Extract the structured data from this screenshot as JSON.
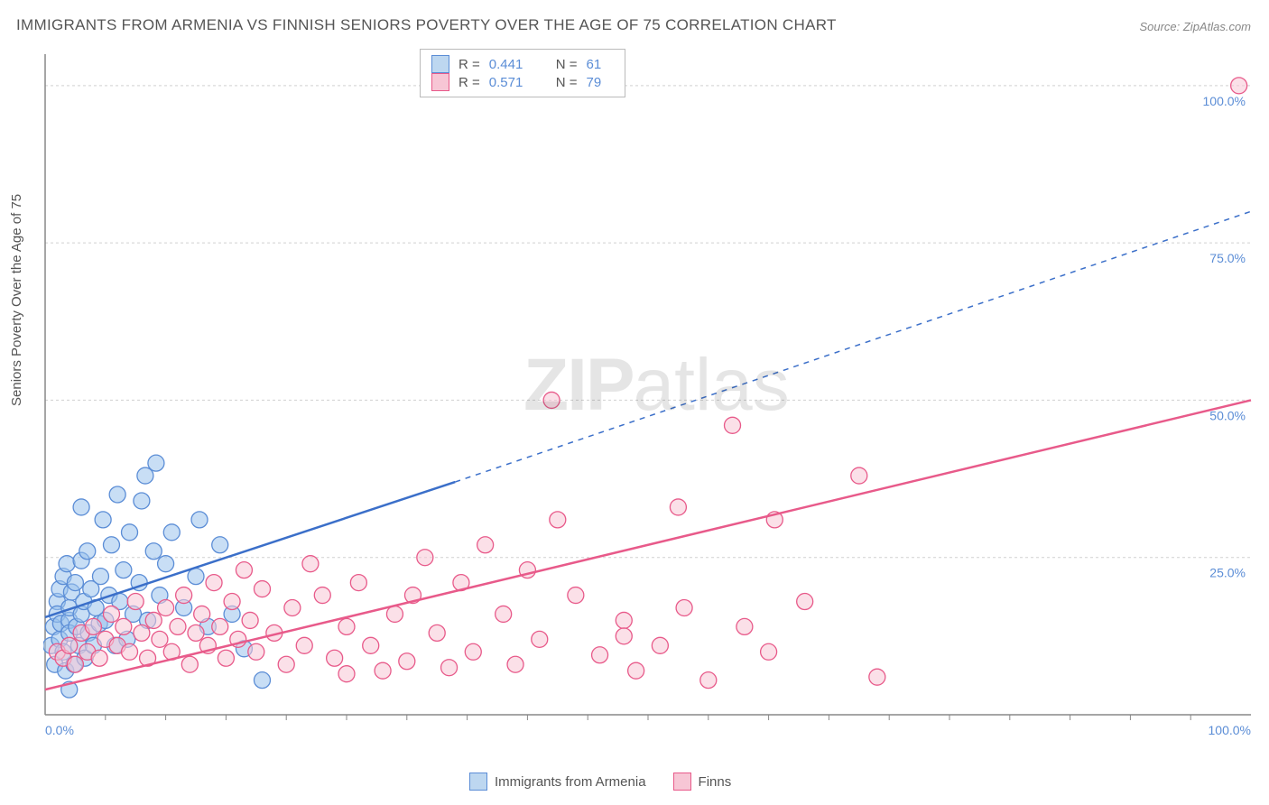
{
  "title": "IMMIGRANTS FROM ARMENIA VS FINNISH SENIORS POVERTY OVER THE AGE OF 75 CORRELATION CHART",
  "source": "Source: ZipAtlas.com",
  "ylabel": "Seniors Poverty Over the Age of 75",
  "watermark": {
    "zip": "ZIP",
    "atlas": "atlas"
  },
  "chart": {
    "type": "scatter",
    "xlim": [
      0,
      100
    ],
    "ylim": [
      0,
      105
    ],
    "background_color": "#ffffff",
    "grid_color": "#d0d0d0",
    "marker_radius": 9,
    "xtick_labels": [
      {
        "v": 0,
        "t": "0.0%"
      },
      {
        "v": 100,
        "t": "100.0%"
      }
    ],
    "ytick_labels": [
      {
        "v": 25,
        "t": "25.0%"
      },
      {
        "v": 50,
        "t": "50.0%"
      },
      {
        "v": 75,
        "t": "75.0%"
      },
      {
        "v": 100,
        "t": "100.0%"
      }
    ],
    "xticks_minor": [
      5,
      10,
      15,
      20,
      25,
      30,
      35,
      40,
      45,
      50,
      55,
      60,
      65,
      70,
      75,
      80,
      85,
      90,
      95
    ],
    "gridlines_y": [
      0,
      25,
      50,
      75,
      100
    ],
    "series": [
      {
        "name": "Immigrants from Armenia",
        "color_fill": "#9bc3ed",
        "color_stroke": "#5b8dd6",
        "R": "0.441",
        "N": "61",
        "trend": {
          "solid": [
            [
              0,
              15.5
            ],
            [
              34,
              37
            ]
          ],
          "dashed": [
            [
              34,
              37
            ],
            [
              100,
              80
            ]
          ],
          "color": "#3b6fc9"
        },
        "points": [
          [
            0.5,
            11
          ],
          [
            0.7,
            14
          ],
          [
            0.8,
            8
          ],
          [
            1,
            18
          ],
          [
            1,
            16
          ],
          [
            1.2,
            20
          ],
          [
            1.2,
            12
          ],
          [
            1.3,
            14.5
          ],
          [
            1.5,
            22
          ],
          [
            1.5,
            10
          ],
          [
            1.7,
            7
          ],
          [
            1.8,
            24
          ],
          [
            2,
            15
          ],
          [
            2,
            17
          ],
          [
            2,
            13
          ],
          [
            2.2,
            19.5
          ],
          [
            2.4,
            8
          ],
          [
            2.5,
            21
          ],
          [
            2.6,
            14
          ],
          [
            2.8,
            11
          ],
          [
            3,
            16
          ],
          [
            3,
            24.5
          ],
          [
            3,
            33
          ],
          [
            3.2,
            18
          ],
          [
            3.3,
            9
          ],
          [
            3.5,
            26
          ],
          [
            3.6,
            13
          ],
          [
            3.8,
            20
          ],
          [
            4,
            11
          ],
          [
            4.2,
            17
          ],
          [
            4.5,
            14.5
          ],
          [
            4.6,
            22
          ],
          [
            4.8,
            31
          ],
          [
            5,
            15
          ],
          [
            5.3,
            19
          ],
          [
            5.5,
            27
          ],
          [
            5.8,
            11
          ],
          [
            6,
            35
          ],
          [
            6.2,
            18
          ],
          [
            6.5,
            23
          ],
          [
            6.8,
            12
          ],
          [
            7,
            29
          ],
          [
            7.3,
            16
          ],
          [
            7.8,
            21
          ],
          [
            8,
            34
          ],
          [
            8.3,
            38
          ],
          [
            8.5,
            15
          ],
          [
            9,
            26
          ],
          [
            9.2,
            40
          ],
          [
            9.5,
            19
          ],
          [
            10,
            24
          ],
          [
            10.5,
            29
          ],
          [
            11.5,
            17
          ],
          [
            12.5,
            22
          ],
          [
            12.8,
            31
          ],
          [
            13.5,
            14
          ],
          [
            14.5,
            27
          ],
          [
            15.5,
            16
          ],
          [
            16.5,
            10.5
          ],
          [
            18,
            5.5
          ],
          [
            2,
            4
          ]
        ]
      },
      {
        "name": "Finns",
        "color_fill": "#f7c6d5",
        "color_stroke": "#e85a8a",
        "R": "0.571",
        "N": "79",
        "trend": {
          "solid": [
            [
              0,
              4
            ],
            [
              100,
              50
            ]
          ],
          "color": "#e85a8a"
        },
        "points": [
          [
            1,
            10
          ],
          [
            1.5,
            9
          ],
          [
            2,
            11
          ],
          [
            2.5,
            8
          ],
          [
            3,
            13
          ],
          [
            3.5,
            10
          ],
          [
            4,
            14
          ],
          [
            4.5,
            9
          ],
          [
            5,
            12
          ],
          [
            5.5,
            16
          ],
          [
            6,
            11
          ],
          [
            6.5,
            14
          ],
          [
            7,
            10
          ],
          [
            7.5,
            18
          ],
          [
            8,
            13
          ],
          [
            8.5,
            9
          ],
          [
            9,
            15
          ],
          [
            9.5,
            12
          ],
          [
            10,
            17
          ],
          [
            10.5,
            10
          ],
          [
            11,
            14
          ],
          [
            11.5,
            19
          ],
          [
            12,
            8
          ],
          [
            12.5,
            13
          ],
          [
            13,
            16
          ],
          [
            13.5,
            11
          ],
          [
            14,
            21
          ],
          [
            14.5,
            14
          ],
          [
            15,
            9
          ],
          [
            15.5,
            18
          ],
          [
            16,
            12
          ],
          [
            16.5,
            23
          ],
          [
            17,
            15
          ],
          [
            17.5,
            10
          ],
          [
            18,
            20
          ],
          [
            19,
            13
          ],
          [
            20,
            8
          ],
          [
            20.5,
            17
          ],
          [
            21.5,
            11
          ],
          [
            22,
            24
          ],
          [
            23,
            19
          ],
          [
            24,
            9
          ],
          [
            25,
            14
          ],
          [
            25,
            6.5
          ],
          [
            26,
            21
          ],
          [
            27,
            11
          ],
          [
            28,
            7
          ],
          [
            29,
            16
          ],
          [
            30,
            8.5
          ],
          [
            30.5,
            19
          ],
          [
            31.5,
            25
          ],
          [
            32.5,
            13
          ],
          [
            33.5,
            7.5
          ],
          [
            34.5,
            21
          ],
          [
            35.5,
            10
          ],
          [
            36.5,
            27
          ],
          [
            38,
            16
          ],
          [
            39,
            8
          ],
          [
            40,
            23
          ],
          [
            41,
            12
          ],
          [
            42.5,
            31
          ],
          [
            42,
            50
          ],
          [
            44,
            19
          ],
          [
            46,
            9.5
          ],
          [
            48,
            15
          ],
          [
            49,
            7
          ],
          [
            51,
            11
          ],
          [
            52.5,
            33
          ],
          [
            53,
            17
          ],
          [
            55,
            5.5
          ],
          [
            57,
            46
          ],
          [
            58,
            14
          ],
          [
            60,
            10
          ],
          [
            63,
            18
          ],
          [
            67.5,
            38
          ],
          [
            69,
            6
          ],
          [
            60.5,
            31
          ],
          [
            99,
            100
          ],
          [
            48,
            12.5
          ]
        ]
      }
    ]
  },
  "legend_top": {
    "r_prefix": "R =",
    "n_prefix": "N ="
  },
  "legend_bottom": [
    {
      "swatch": "blue",
      "label": "Immigrants from Armenia"
    },
    {
      "swatch": "pink",
      "label": "Finns"
    }
  ]
}
